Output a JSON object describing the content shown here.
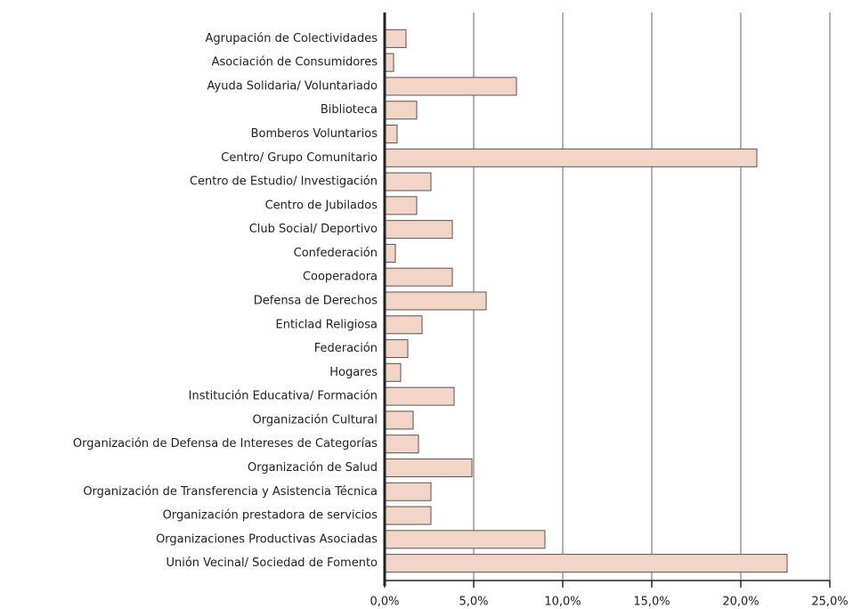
{
  "chart_data": {
    "type": "bar",
    "orientation": "horizontal",
    "categories": [
      "Agrupación de Colectividades",
      "Asociación de Consumidores",
      "Ayuda Solidaria/ Voluntariado",
      "Biblioteca",
      "Bomberos Voluntarios",
      "Centro/ Grupo Comunitario",
      "Centro de Estudio/ Investigación",
      "Centro de Jubilados",
      "Club Social/ Deportivo",
      "Confederación",
      "Cooperadora",
      "Defensa de Derechos",
      "Enticlad Religiosa",
      "Federación",
      "Hogares",
      "Institución Educativa/ Formación",
      "Organización Cultural",
      "Organización de Defensa de Intereses de Categorías",
      "Organización de Salud",
      "Organización de Transferencia y Asistencia Técnica",
      "Organización prestadora de servicios",
      "Organizaciones Productivas Asociadas",
      "Unión Vecinal/ Sociedad de Fomento"
    ],
    "values": [
      1.2,
      0.5,
      7.4,
      1.8,
      0.7,
      20.9,
      2.6,
      1.8,
      3.8,
      0.6,
      3.8,
      5.7,
      2.1,
      1.3,
      0.9,
      3.9,
      1.6,
      1.9,
      4.9,
      2.6,
      2.6,
      9.0,
      22.6
    ],
    "color": "#f3d5c8",
    "xlim": [
      0,
      25
    ],
    "xticks": [
      {
        "value": 0,
        "label": "0,0%"
      },
      {
        "value": 5,
        "label": "5,0%"
      },
      {
        "value": 10,
        "label": "10,0%"
      },
      {
        "value": 15,
        "label": "15,0%"
      },
      {
        "value": 20,
        "label": "20,0%"
      },
      {
        "value": 25,
        "label": "25,0%"
      }
    ],
    "grid": true
  }
}
